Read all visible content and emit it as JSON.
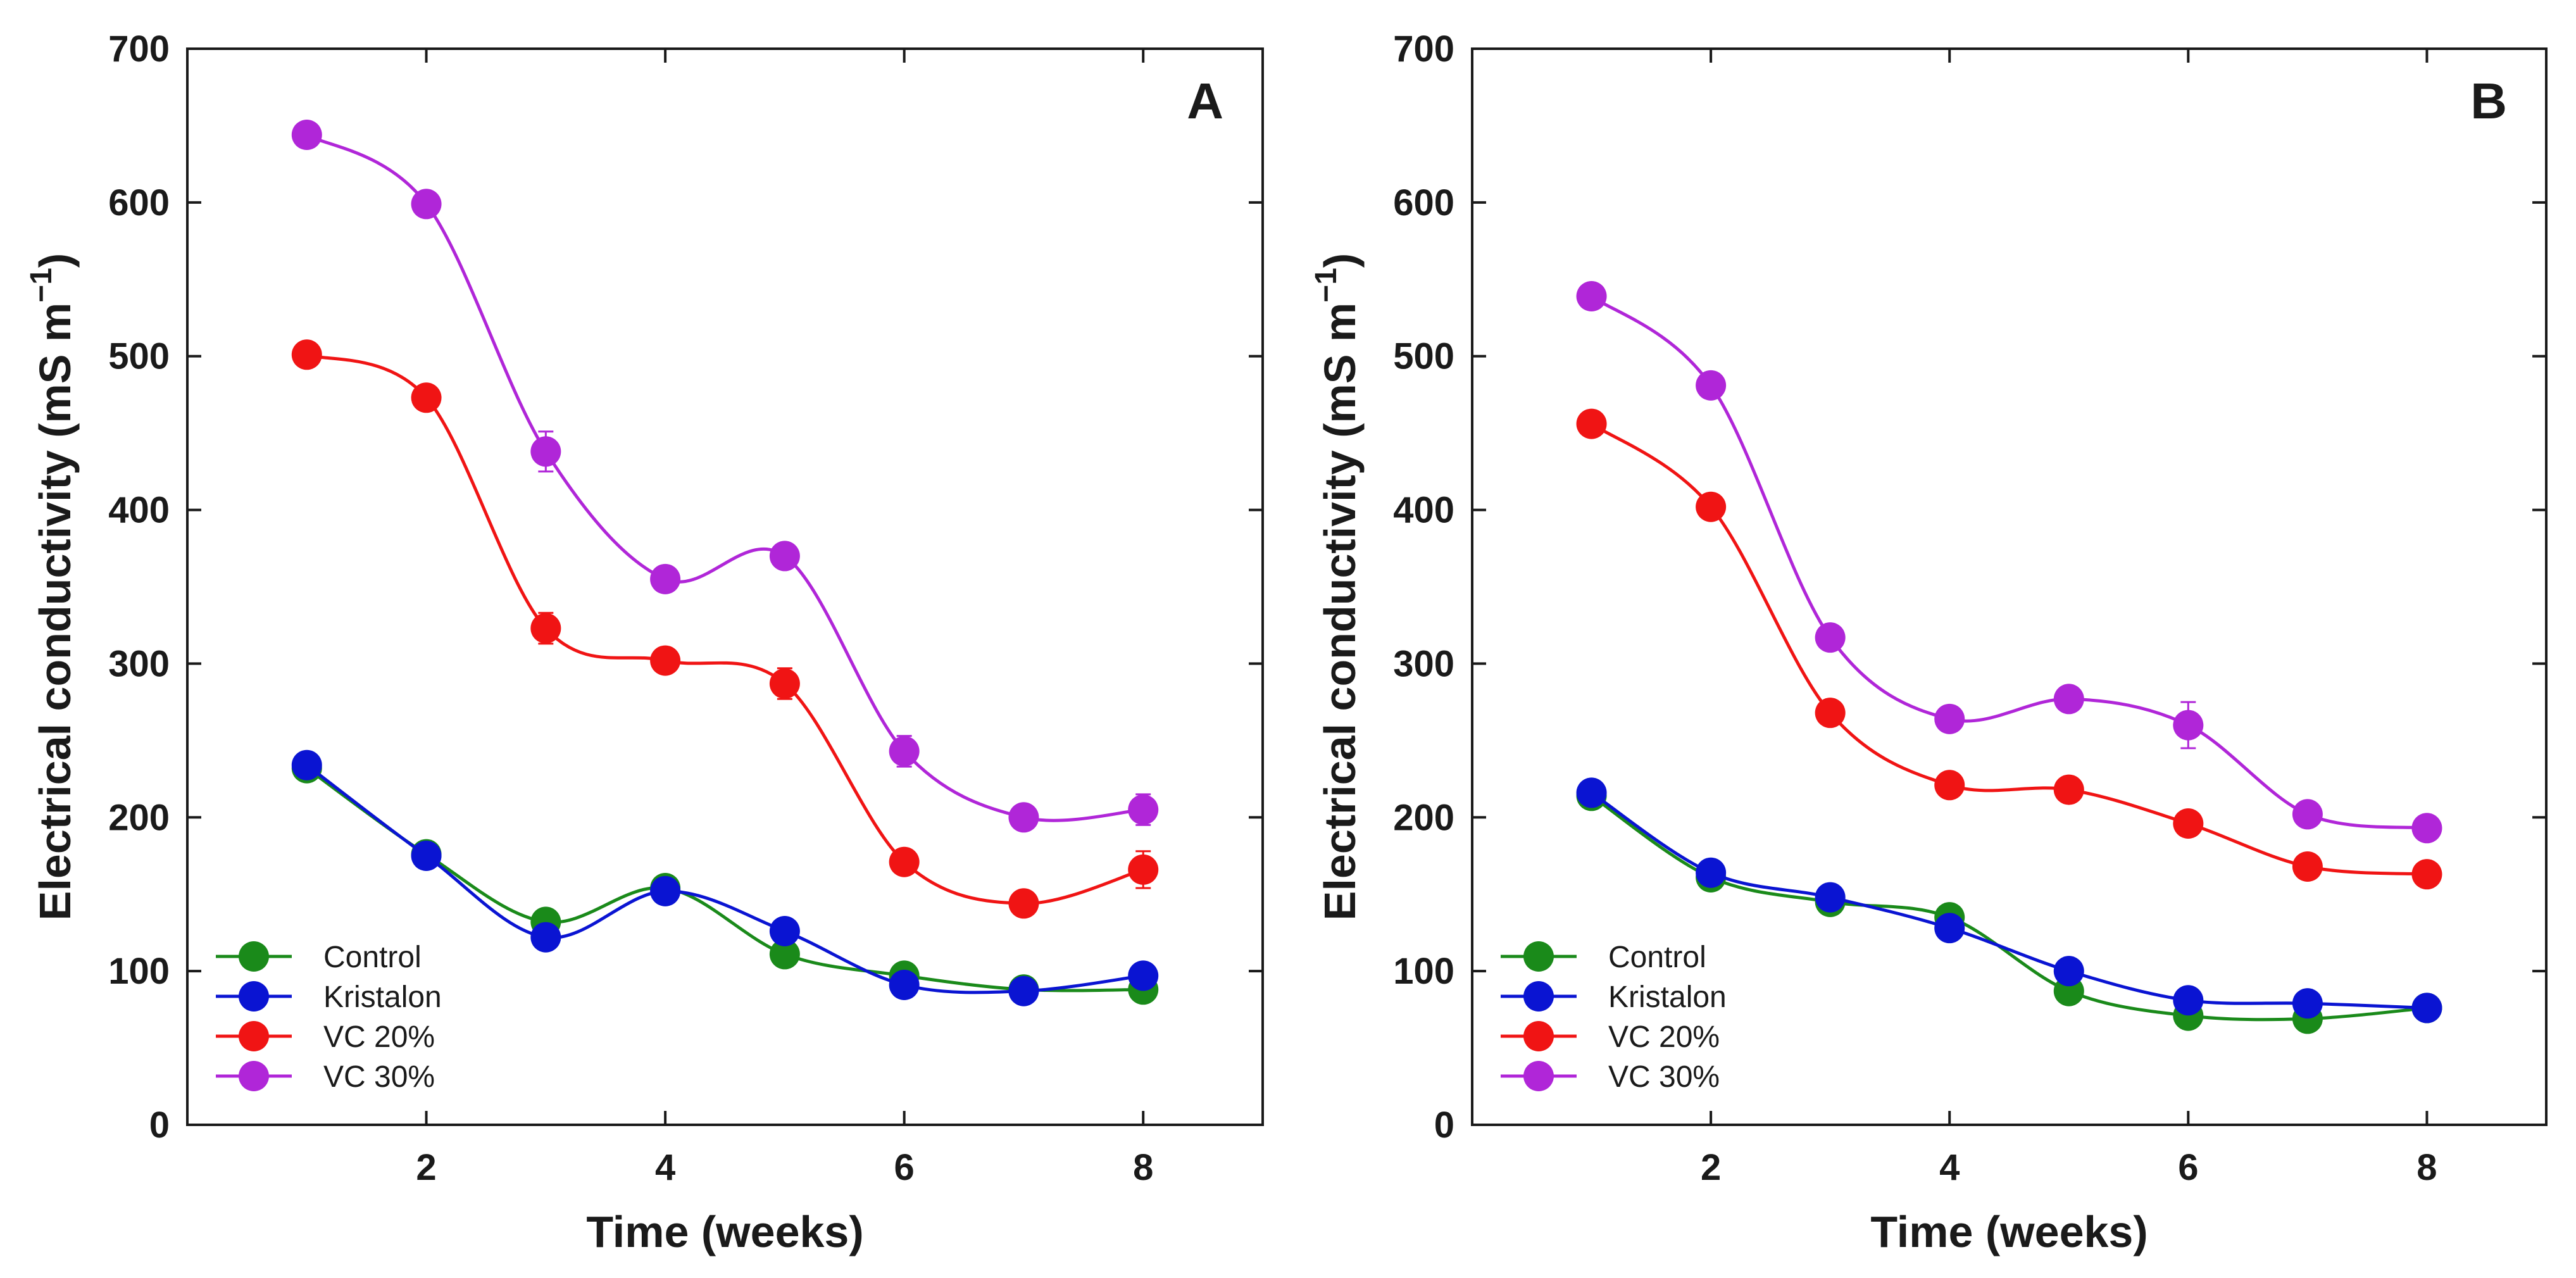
{
  "chart_data": [
    {
      "type": "line",
      "panel_label": "A",
      "xlabel": "Time (weeks)",
      "ylabel_main": "Electrical conductivity (mS m",
      "ylabel_sup": "−1",
      "ylabel_close": ")",
      "xlim": [
        0,
        9
      ],
      "ylim": [
        0,
        700
      ],
      "xticks": [
        2,
        4,
        6,
        8
      ],
      "yticks": [
        0,
        100,
        200,
        300,
        400,
        500,
        600,
        700
      ],
      "x": [
        1,
        2,
        3,
        4,
        5,
        6,
        7,
        8
      ],
      "legend_position": "bottom-left",
      "series": [
        {
          "name": "Control",
          "color": "#1a8a1a",
          "values": [
            232,
            176,
            132,
            154,
            111,
            97,
            88,
            88
          ],
          "errors": [
            4,
            3,
            6,
            4,
            4,
            3,
            3,
            3
          ]
        },
        {
          "name": "Kristalon",
          "color": "#0a14d2",
          "values": [
            234,
            175,
            122,
            152,
            126,
            91,
            87,
            97
          ],
          "errors": [
            4,
            3,
            5,
            4,
            4,
            3,
            3,
            3
          ]
        },
        {
          "name": "VC 20%",
          "color": "#f01414",
          "values": [
            501,
            473,
            323,
            302,
            287,
            171,
            144,
            166
          ],
          "errors": [
            5,
            5,
            10,
            5,
            10,
            5,
            5,
            12
          ]
        },
        {
          "name": "VC 30%",
          "color": "#b026d8",
          "values": [
            644,
            599,
            438,
            355,
            370,
            243,
            200,
            205
          ],
          "errors": [
            5,
            5,
            13,
            5,
            5,
            10,
            5,
            10
          ]
        }
      ]
    },
    {
      "type": "line",
      "panel_label": "B",
      "xlabel": "Time (weeks)",
      "ylabel_main": "Electrical conductivity (mS m",
      "ylabel_sup": "−1",
      "ylabel_close": ")",
      "xlim": [
        0,
        9
      ],
      "ylim": [
        0,
        700
      ],
      "xticks": [
        2,
        4,
        6,
        8
      ],
      "yticks": [
        0,
        100,
        200,
        300,
        400,
        500,
        600,
        700
      ],
      "x": [
        1,
        2,
        3,
        4,
        5,
        6,
        7,
        8
      ],
      "legend_position": "bottom-left",
      "series": [
        {
          "name": "Control",
          "color": "#1a8a1a",
          "values": [
            214,
            161,
            145,
            135,
            87,
            71,
            69,
            76
          ],
          "errors": [
            3,
            3,
            3,
            3,
            3,
            3,
            3,
            3
          ]
        },
        {
          "name": "Kristalon",
          "color": "#0a14d2",
          "values": [
            216,
            164,
            148,
            128,
            100,
            81,
            79,
            76
          ],
          "errors": [
            3,
            3,
            3,
            3,
            3,
            3,
            3,
            3
          ]
        },
        {
          "name": "VC 20%",
          "color": "#f01414",
          "values": [
            456,
            402,
            268,
            221,
            218,
            196,
            168,
            163
          ],
          "errors": [
            4,
            4,
            5,
            4,
            4,
            4,
            4,
            4
          ]
        },
        {
          "name": "VC 30%",
          "color": "#b026d8",
          "values": [
            539,
            481,
            317,
            264,
            277,
            260,
            202,
            193
          ],
          "errors": [
            4,
            4,
            5,
            4,
            4,
            15,
            4,
            4
          ]
        }
      ]
    }
  ]
}
